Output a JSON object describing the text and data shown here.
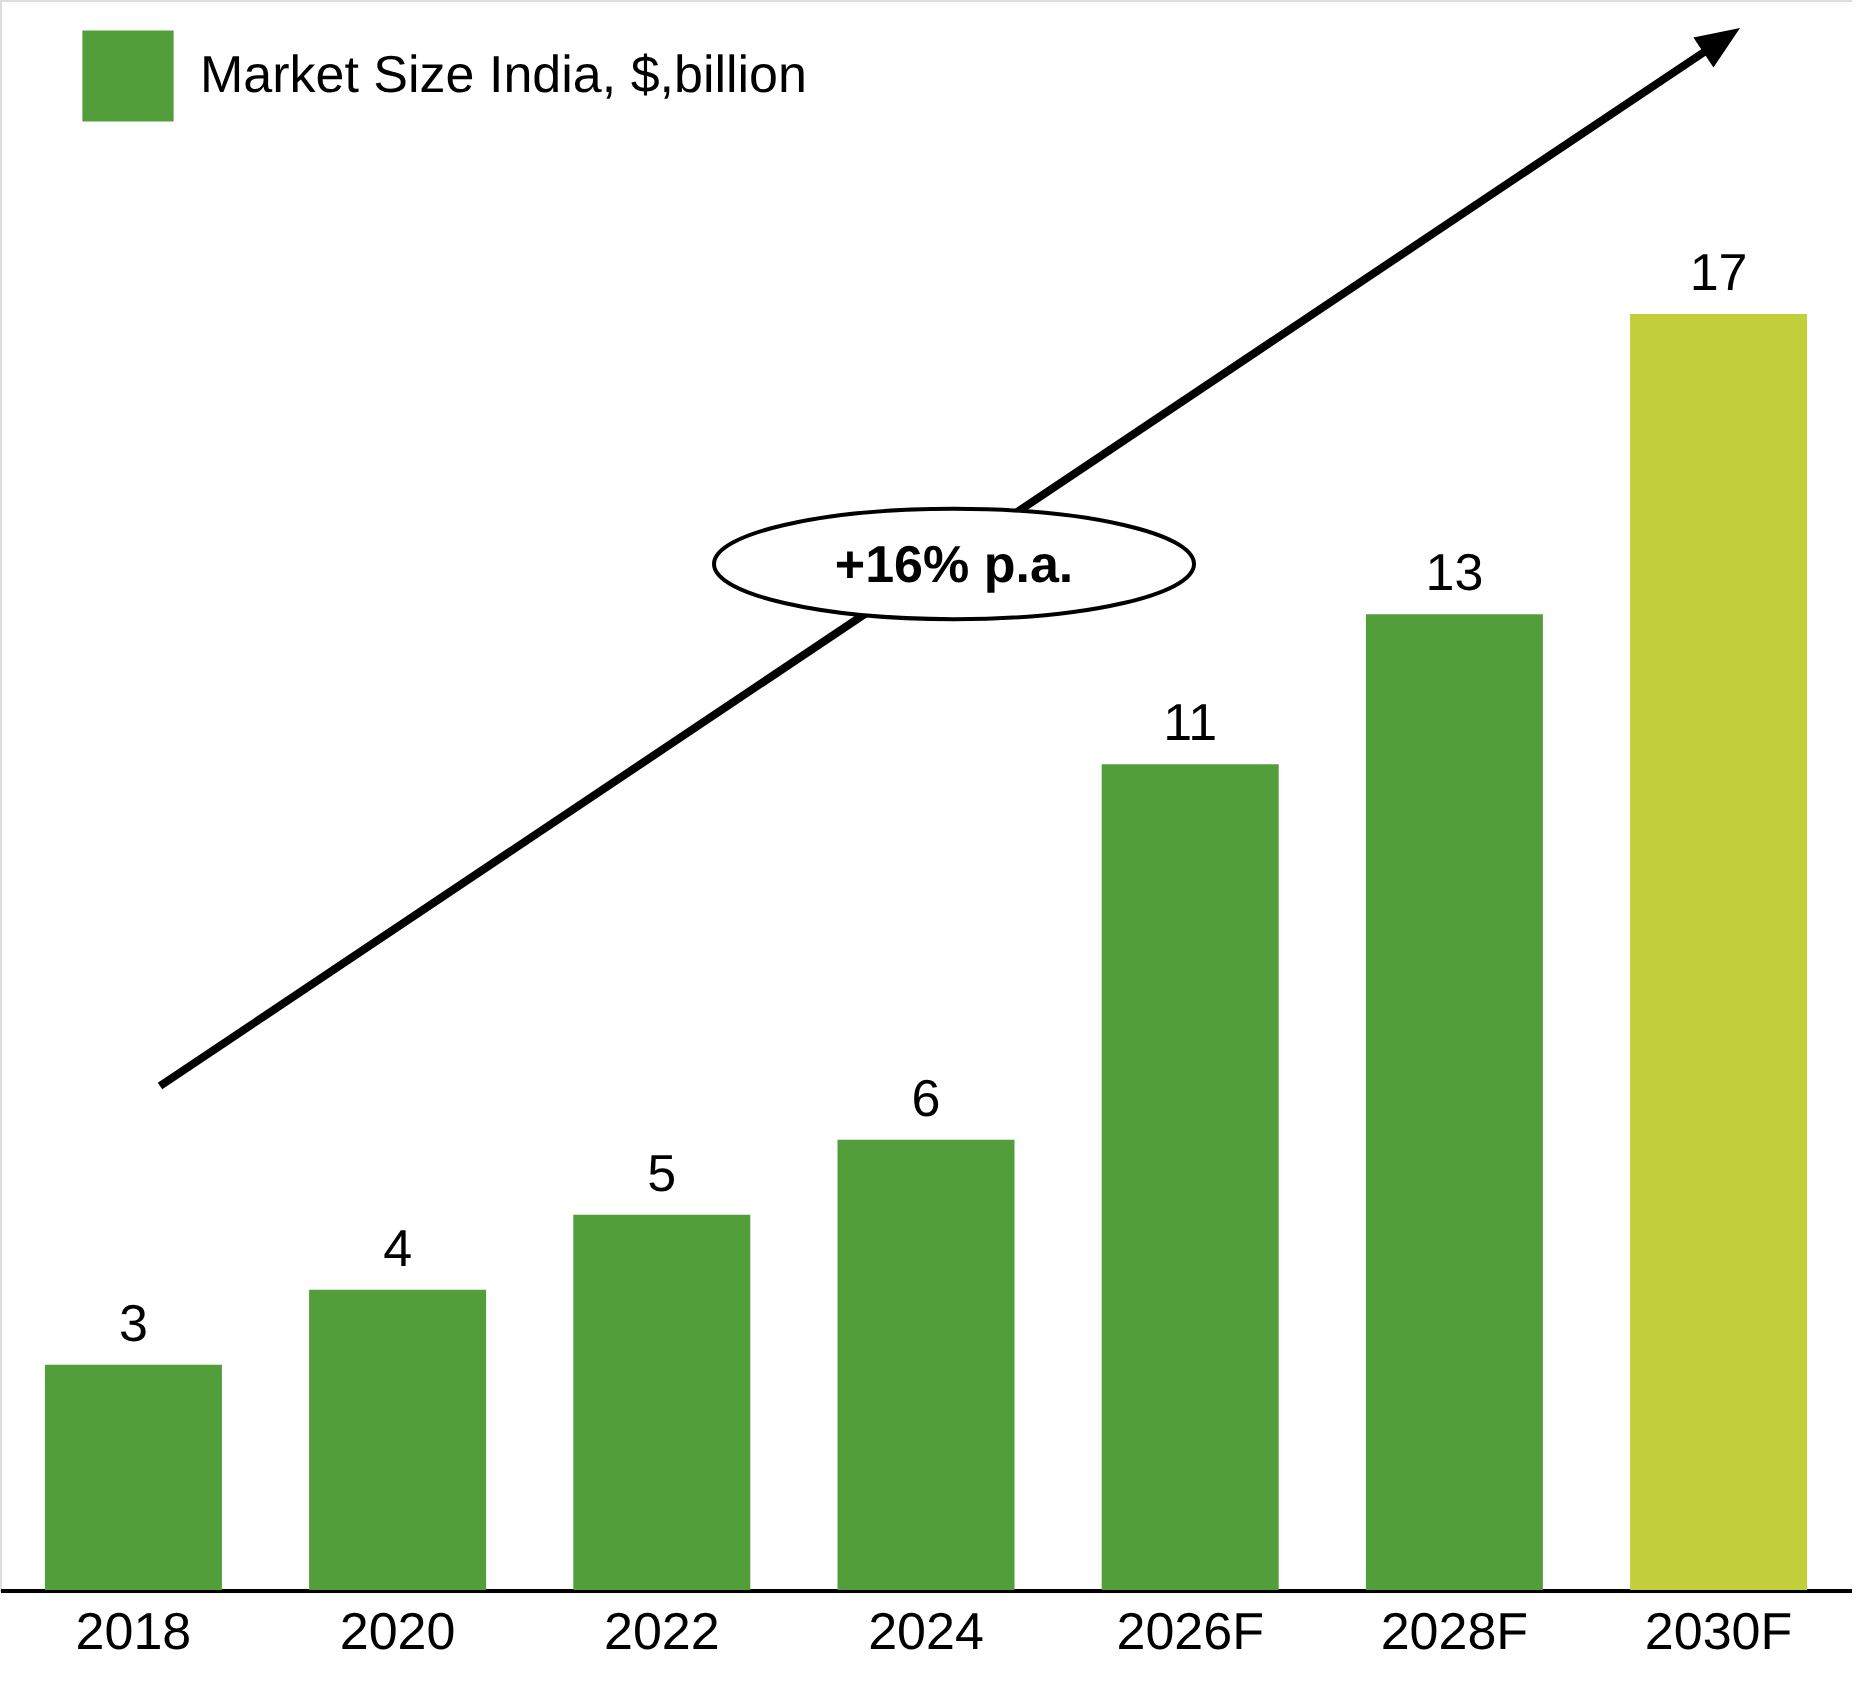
{
  "chart_data": {
    "type": "bar",
    "categories": [
      "2018",
      "2020",
      "2022",
      "2024",
      "2026F",
      "2028F",
      "2030F"
    ],
    "series": [
      {
        "name": "Market Size India, $,billion",
        "color": "#529e3a",
        "values": [
          3,
          4,
          5,
          6,
          11,
          13,
          17
        ],
        "colors": [
          "#529e3a",
          "#529e3a",
          "#529e3a",
          "#529e3a",
          "#529e3a",
          "#529e3a",
          "#c2cf3a"
        ]
      }
    ],
    "data_labels": true,
    "legend": "top left",
    "grid": false,
    "annotations": [
      "+16% p.a."
    ]
  }
}
